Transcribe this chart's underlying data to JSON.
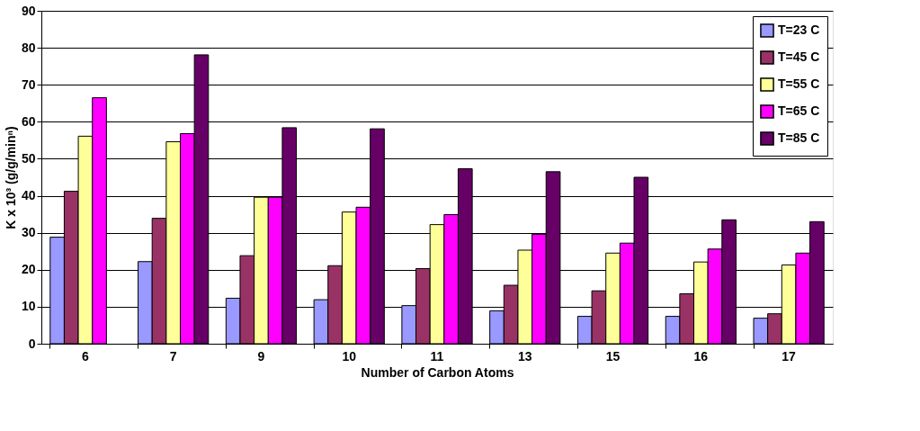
{
  "chart_data": {
    "type": "bar",
    "xlabel": "Number of Carbon Atoms",
    "ylabel": "K x 10³ (g/g/minⁿ)",
    "categories": [
      "6",
      "7",
      "9",
      "10",
      "11",
      "13",
      "15",
      "16",
      "17"
    ],
    "series": [
      {
        "name": "T=23 C",
        "color": "#9999ff",
        "values": [
          28.8,
          22.2,
          12.3,
          11.9,
          10.3,
          8.9,
          7.4,
          7.4,
          6.9
        ]
      },
      {
        "name": "T=45 C",
        "color": "#993366",
        "values": [
          41.2,
          33.9,
          23.8,
          21.1,
          20.3,
          15.8,
          14.3,
          13.5,
          8.1
        ]
      },
      {
        "name": "T=55 C",
        "color": "#ffff99",
        "values": [
          56.1,
          54.6,
          39.6,
          35.6,
          32.2,
          25.3,
          24.5,
          22.1,
          21.3
        ]
      },
      {
        "name": "T=65 C",
        "color": "#ff00ff",
        "values": [
          66.5,
          56.8,
          39.6,
          36.9,
          34.9,
          29.6,
          27.2,
          25.6,
          24.5
        ]
      },
      {
        "name": "T=85 C",
        "color": "#660066",
        "values": [
          null,
          78.1,
          58.4,
          58.1,
          47.3,
          46.5,
          45.0,
          33.5,
          33.0
        ]
      }
    ],
    "ylim": [
      0,
      90
    ],
    "yticks": [
      0,
      10,
      20,
      30,
      40,
      50,
      60,
      70,
      80,
      90
    ],
    "grid": "y",
    "legend": "top right"
  }
}
